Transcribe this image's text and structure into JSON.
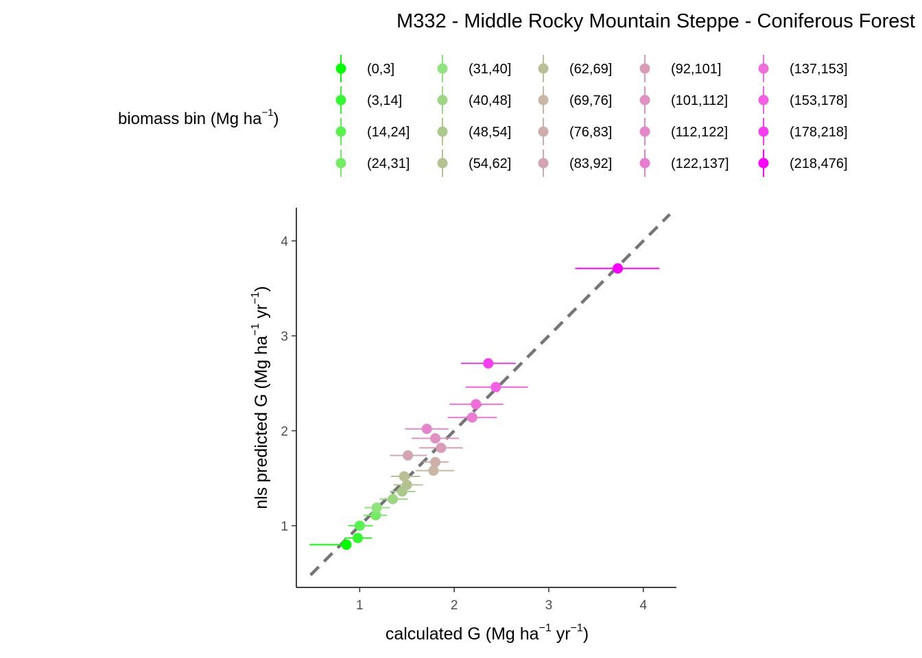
{
  "chart_data": {
    "type": "scatter",
    "title": "M332 -  Middle Rocky Mountain Steppe - Coniferous Forest",
    "xlabel": {
      "main": "calculated G (Mg ha",
      "sup1": "−1",
      "mid": " yr",
      "sup2": "−1",
      "end": ")"
    },
    "ylabel": {
      "main": "nls predicted G (Mg ha",
      "sup1": "−1",
      "mid": " yr",
      "sup2": "−1",
      "end": ")"
    },
    "xlim": [
      0.33,
      4.35
    ],
    "ylim": [
      0.35,
      4.35
    ],
    "x_ticks": [
      1,
      2,
      3,
      4
    ],
    "y_ticks": [
      1,
      2,
      3,
      4
    ],
    "reference_line": {
      "slope": 1,
      "intercept": 0,
      "style": "dashed",
      "color": "#757575",
      "from": 0.48,
      "to": 4.28
    },
    "grid": false,
    "legend": {
      "title_main": "biomass bin (Mg ha",
      "title_sup": "−1",
      "title_end": ")",
      "position": "top"
    },
    "series": [
      {
        "name": "(0,3]",
        "color": "#00ff00",
        "x": 0.86,
        "y": 0.8,
        "xerr": [
          0.47,
          0.81
        ]
      },
      {
        "name": "(3,14]",
        "color": "#34f82f",
        "x": 0.98,
        "y": 0.87,
        "xerr": [
          0.84,
          1.13
        ]
      },
      {
        "name": "(14,24]",
        "color": "#58f24f",
        "x": 1.0,
        "y": 1.0,
        "xerr": [
          0.88,
          1.14
        ]
      },
      {
        "name": "(24,31]",
        "color": "#73ec64",
        "x": 1.17,
        "y": 1.11,
        "xerr": [
          1.04,
          1.29
        ]
      },
      {
        "name": "(31,40]",
        "color": "#8ee57d",
        "x": 1.18,
        "y": 1.19,
        "xerr": [
          1.05,
          1.32
        ]
      },
      {
        "name": "(40,48]",
        "color": "#9dd682",
        "x": 1.35,
        "y": 1.28,
        "xerr": [
          1.21,
          1.51
        ]
      },
      {
        "name": "(48,54]",
        "color": "#a9ca88",
        "x": 1.45,
        "y": 1.36,
        "xerr": [
          1.32,
          1.59
        ]
      },
      {
        "name": "(54,62]",
        "color": "#b2c38f",
        "x": 1.5,
        "y": 1.43,
        "xerr": [
          1.36,
          1.67
        ]
      },
      {
        "name": "(62,69]",
        "color": "#bbbf95",
        "x": 1.47,
        "y": 1.52,
        "xerr": [
          1.33,
          1.64
        ]
      },
      {
        "name": "(69,76]",
        "color": "#c8b8a1",
        "x": 1.78,
        "y": 1.58,
        "xerr": [
          1.59,
          2.0
        ]
      },
      {
        "name": "(76,83]",
        "color": "#cfaeaa",
        "x": 1.8,
        "y": 1.67,
        "xerr": [
          1.67,
          1.94
        ]
      },
      {
        "name": "(83,92]",
        "color": "#d3a4b2",
        "x": 1.51,
        "y": 1.74,
        "xerr": [
          1.32,
          1.71
        ]
      },
      {
        "name": "(92,101]",
        "color": "#d99bb7",
        "x": 1.86,
        "y": 1.82,
        "xerr": [
          1.63,
          2.09
        ]
      },
      {
        "name": "(101,112]",
        "color": "#e091c1",
        "x": 1.8,
        "y": 1.92,
        "xerr": [
          1.55,
          2.05
        ]
      },
      {
        "name": "(112,122]",
        "color": "#e585cb",
        "x": 1.71,
        "y": 2.02,
        "xerr": [
          1.48,
          1.94
        ]
      },
      {
        "name": "(122,137]",
        "color": "#ea7bd3",
        "x": 2.19,
        "y": 2.14,
        "xerr": [
          1.93,
          2.45
        ]
      },
      {
        "name": "(137,153]",
        "color": "#ef6edc",
        "x": 2.23,
        "y": 2.28,
        "xerr": [
          1.95,
          2.52
        ]
      },
      {
        "name": "(153,178]",
        "color": "#f45ee4",
        "x": 2.44,
        "y": 2.46,
        "xerr": [
          2.12,
          2.78
        ]
      },
      {
        "name": "(178,218]",
        "color": "#f93cf0",
        "x": 2.36,
        "y": 2.71,
        "xerr": [
          2.07,
          2.65
        ]
      },
      {
        "name": "(218,476]",
        "color": "#ff00ff",
        "x": 3.73,
        "y": 3.71,
        "xerr": [
          3.28,
          4.17
        ]
      }
    ]
  }
}
